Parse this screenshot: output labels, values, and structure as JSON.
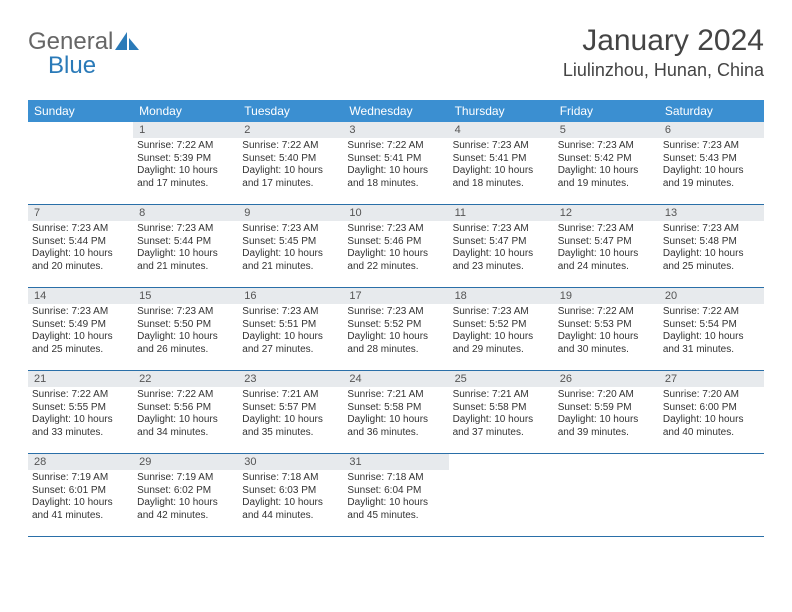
{
  "logo": {
    "text1": "General",
    "text2": "Blue",
    "icon_color": "#2a7ab8"
  },
  "title": "January 2024",
  "location": "Liulinzhou, Hunan, China",
  "colors": {
    "header_bg": "#3b8fd1",
    "header_text": "#ffffff",
    "daynum_bg": "#e7eaed",
    "row_border": "#2a6fa8",
    "body_text": "#333333"
  },
  "weekdays": [
    "Sunday",
    "Monday",
    "Tuesday",
    "Wednesday",
    "Thursday",
    "Friday",
    "Saturday"
  ],
  "first_weekday_index": 1,
  "days": [
    {
      "n": 1,
      "sunrise": "7:22 AM",
      "sunset": "5:39 PM",
      "daylight": "10 hours and 17 minutes."
    },
    {
      "n": 2,
      "sunrise": "7:22 AM",
      "sunset": "5:40 PM",
      "daylight": "10 hours and 17 minutes."
    },
    {
      "n": 3,
      "sunrise": "7:22 AM",
      "sunset": "5:41 PM",
      "daylight": "10 hours and 18 minutes."
    },
    {
      "n": 4,
      "sunrise": "7:23 AM",
      "sunset": "5:41 PM",
      "daylight": "10 hours and 18 minutes."
    },
    {
      "n": 5,
      "sunrise": "7:23 AM",
      "sunset": "5:42 PM",
      "daylight": "10 hours and 19 minutes."
    },
    {
      "n": 6,
      "sunrise": "7:23 AM",
      "sunset": "5:43 PM",
      "daylight": "10 hours and 19 minutes."
    },
    {
      "n": 7,
      "sunrise": "7:23 AM",
      "sunset": "5:44 PM",
      "daylight": "10 hours and 20 minutes."
    },
    {
      "n": 8,
      "sunrise": "7:23 AM",
      "sunset": "5:44 PM",
      "daylight": "10 hours and 21 minutes."
    },
    {
      "n": 9,
      "sunrise": "7:23 AM",
      "sunset": "5:45 PM",
      "daylight": "10 hours and 21 minutes."
    },
    {
      "n": 10,
      "sunrise": "7:23 AM",
      "sunset": "5:46 PM",
      "daylight": "10 hours and 22 minutes."
    },
    {
      "n": 11,
      "sunrise": "7:23 AM",
      "sunset": "5:47 PM",
      "daylight": "10 hours and 23 minutes."
    },
    {
      "n": 12,
      "sunrise": "7:23 AM",
      "sunset": "5:47 PM",
      "daylight": "10 hours and 24 minutes."
    },
    {
      "n": 13,
      "sunrise": "7:23 AM",
      "sunset": "5:48 PM",
      "daylight": "10 hours and 25 minutes."
    },
    {
      "n": 14,
      "sunrise": "7:23 AM",
      "sunset": "5:49 PM",
      "daylight": "10 hours and 25 minutes."
    },
    {
      "n": 15,
      "sunrise": "7:23 AM",
      "sunset": "5:50 PM",
      "daylight": "10 hours and 26 minutes."
    },
    {
      "n": 16,
      "sunrise": "7:23 AM",
      "sunset": "5:51 PM",
      "daylight": "10 hours and 27 minutes."
    },
    {
      "n": 17,
      "sunrise": "7:23 AM",
      "sunset": "5:52 PM",
      "daylight": "10 hours and 28 minutes."
    },
    {
      "n": 18,
      "sunrise": "7:23 AM",
      "sunset": "5:52 PM",
      "daylight": "10 hours and 29 minutes."
    },
    {
      "n": 19,
      "sunrise": "7:22 AM",
      "sunset": "5:53 PM",
      "daylight": "10 hours and 30 minutes."
    },
    {
      "n": 20,
      "sunrise": "7:22 AM",
      "sunset": "5:54 PM",
      "daylight": "10 hours and 31 minutes."
    },
    {
      "n": 21,
      "sunrise": "7:22 AM",
      "sunset": "5:55 PM",
      "daylight": "10 hours and 33 minutes."
    },
    {
      "n": 22,
      "sunrise": "7:22 AM",
      "sunset": "5:56 PM",
      "daylight": "10 hours and 34 minutes."
    },
    {
      "n": 23,
      "sunrise": "7:21 AM",
      "sunset": "5:57 PM",
      "daylight": "10 hours and 35 minutes."
    },
    {
      "n": 24,
      "sunrise": "7:21 AM",
      "sunset": "5:58 PM",
      "daylight": "10 hours and 36 minutes."
    },
    {
      "n": 25,
      "sunrise": "7:21 AM",
      "sunset": "5:58 PM",
      "daylight": "10 hours and 37 minutes."
    },
    {
      "n": 26,
      "sunrise": "7:20 AM",
      "sunset": "5:59 PM",
      "daylight": "10 hours and 39 minutes."
    },
    {
      "n": 27,
      "sunrise": "7:20 AM",
      "sunset": "6:00 PM",
      "daylight": "10 hours and 40 minutes."
    },
    {
      "n": 28,
      "sunrise": "7:19 AM",
      "sunset": "6:01 PM",
      "daylight": "10 hours and 41 minutes."
    },
    {
      "n": 29,
      "sunrise": "7:19 AM",
      "sunset": "6:02 PM",
      "daylight": "10 hours and 42 minutes."
    },
    {
      "n": 30,
      "sunrise": "7:18 AM",
      "sunset": "6:03 PM",
      "daylight": "10 hours and 44 minutes."
    },
    {
      "n": 31,
      "sunrise": "7:18 AM",
      "sunset": "6:04 PM",
      "daylight": "10 hours and 45 minutes."
    }
  ],
  "labels": {
    "sunrise": "Sunrise:",
    "sunset": "Sunset:",
    "daylight": "Daylight:"
  }
}
